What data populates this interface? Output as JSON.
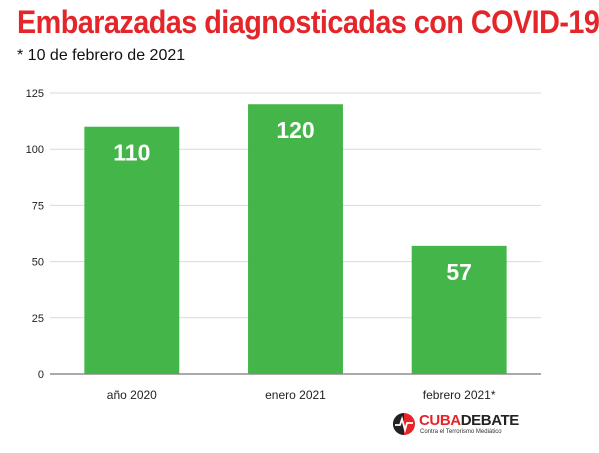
{
  "title": "Embarazadas diagnosticadas con COVID-19",
  "subtitle": "* 10 de febrero de 2021",
  "colors": {
    "title": "#e4262b",
    "bar": "#44b549",
    "grid": "#d9d9d9",
    "axis": "#555555",
    "label": "#ffffff"
  },
  "chart_data": {
    "type": "bar",
    "title": "Embarazadas diagnosticadas con COVID-19",
    "subtitle": "* 10 de febrero de 2021",
    "categories": [
      "año 2020",
      "enero 2021",
      "febrero 2021*"
    ],
    "values": [
      110,
      120,
      57
    ],
    "data_labels": [
      "110",
      "120",
      "57"
    ],
    "xlabel": "",
    "ylabel": "",
    "ylim": [
      0,
      125
    ],
    "yticks": [
      0,
      25,
      50,
      75,
      100,
      125
    ],
    "grid": true,
    "legend": "none"
  },
  "logo": {
    "icon": "cubadebate-logo-icon",
    "word_1": "CUBA",
    "word_2": "DEBATE",
    "tagline": "Contra el Terrorismo Mediático"
  }
}
